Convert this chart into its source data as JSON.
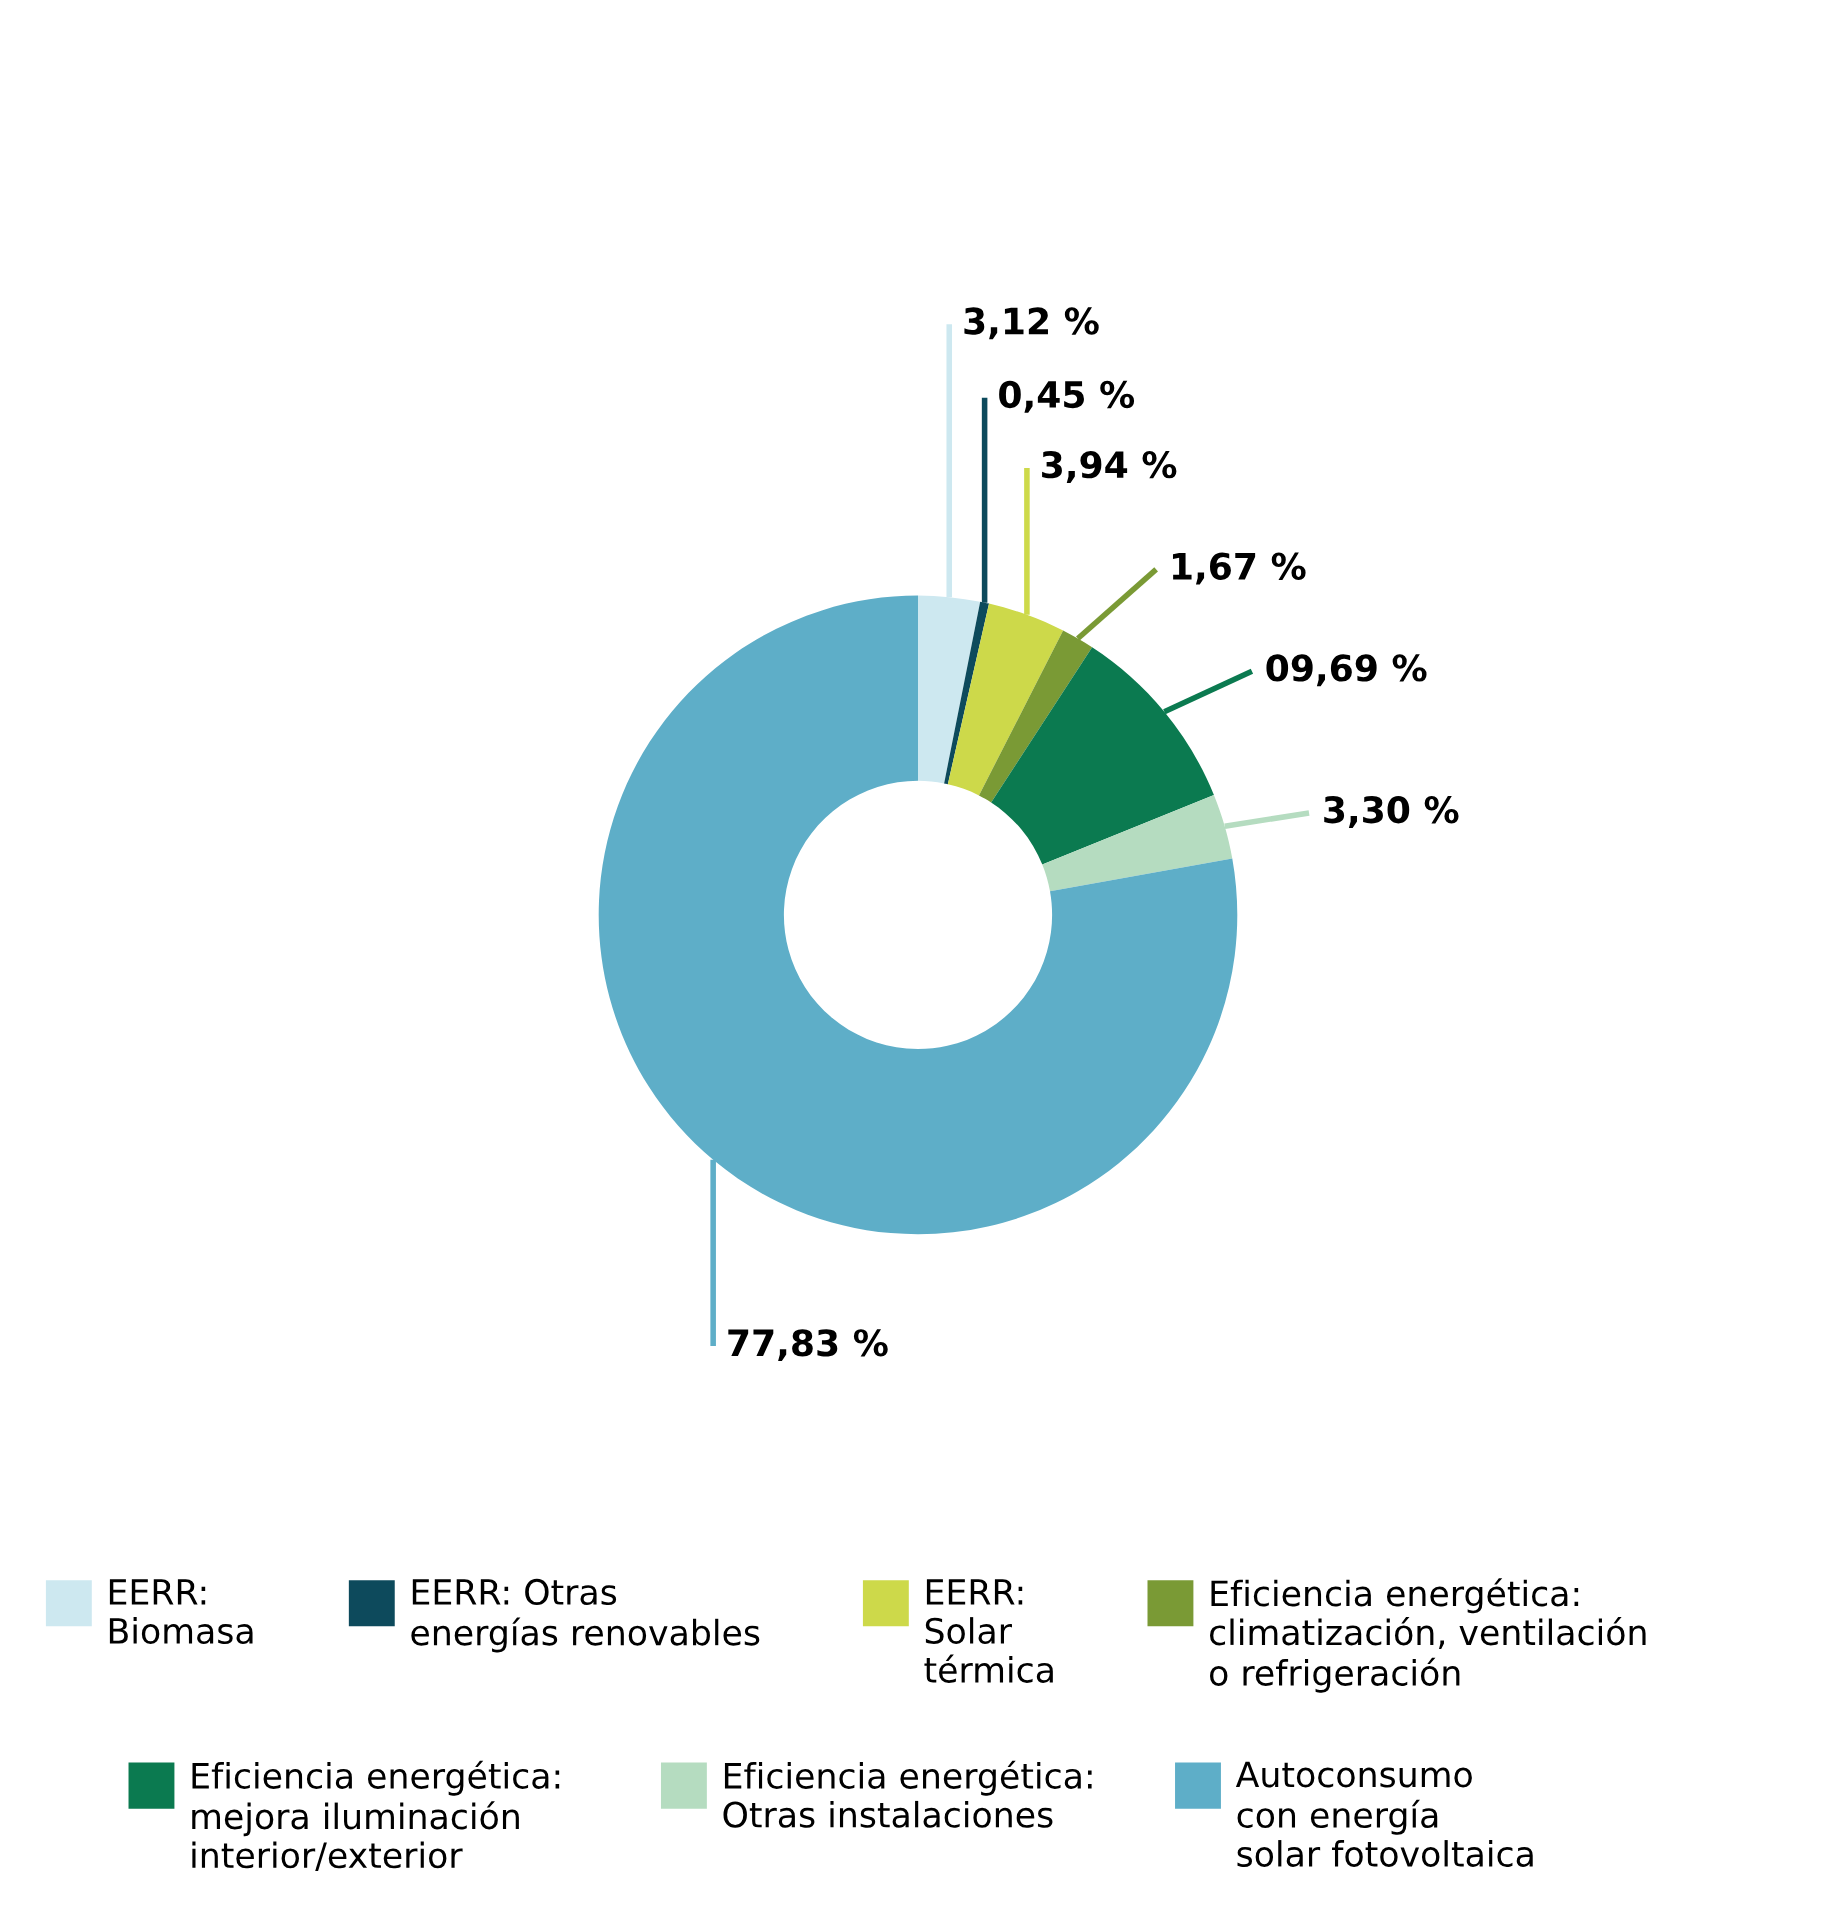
{
  "chart_data": {
    "type": "donut",
    "categories": [
      "EERR:\nBiomasa",
      "EERR: Otras\nenergías renovables",
      "EERR:\nSolar\ntérmica",
      "Eficiencia energética:\nclimatización, ventilación\no refrigeración",
      "Eficiencia energética:\nmejora iluminación\ninterior/exterior",
      "Eficiencia energética:\nOtras instalaciones",
      "Autoconsumo\ncon energía\nsolar fotovoltaica"
    ],
    "values": [
      3.12,
      0.45,
      3.94,
      1.67,
      9.69,
      3.3,
      77.83
    ],
    "value_labels": [
      "3,12 %",
      "0,45 %",
      "3,94 %",
      "1,67 %",
      "09,69 %",
      "3,30 %",
      "77,83 %"
    ],
    "colors": [
      "#cde8f0",
      "#0d4a5c",
      "#cdd94a",
      "#7a9a35",
      "#0b7a50",
      "#b5dcc0",
      "#5eaec8"
    ],
    "legend": "bottom"
  }
}
